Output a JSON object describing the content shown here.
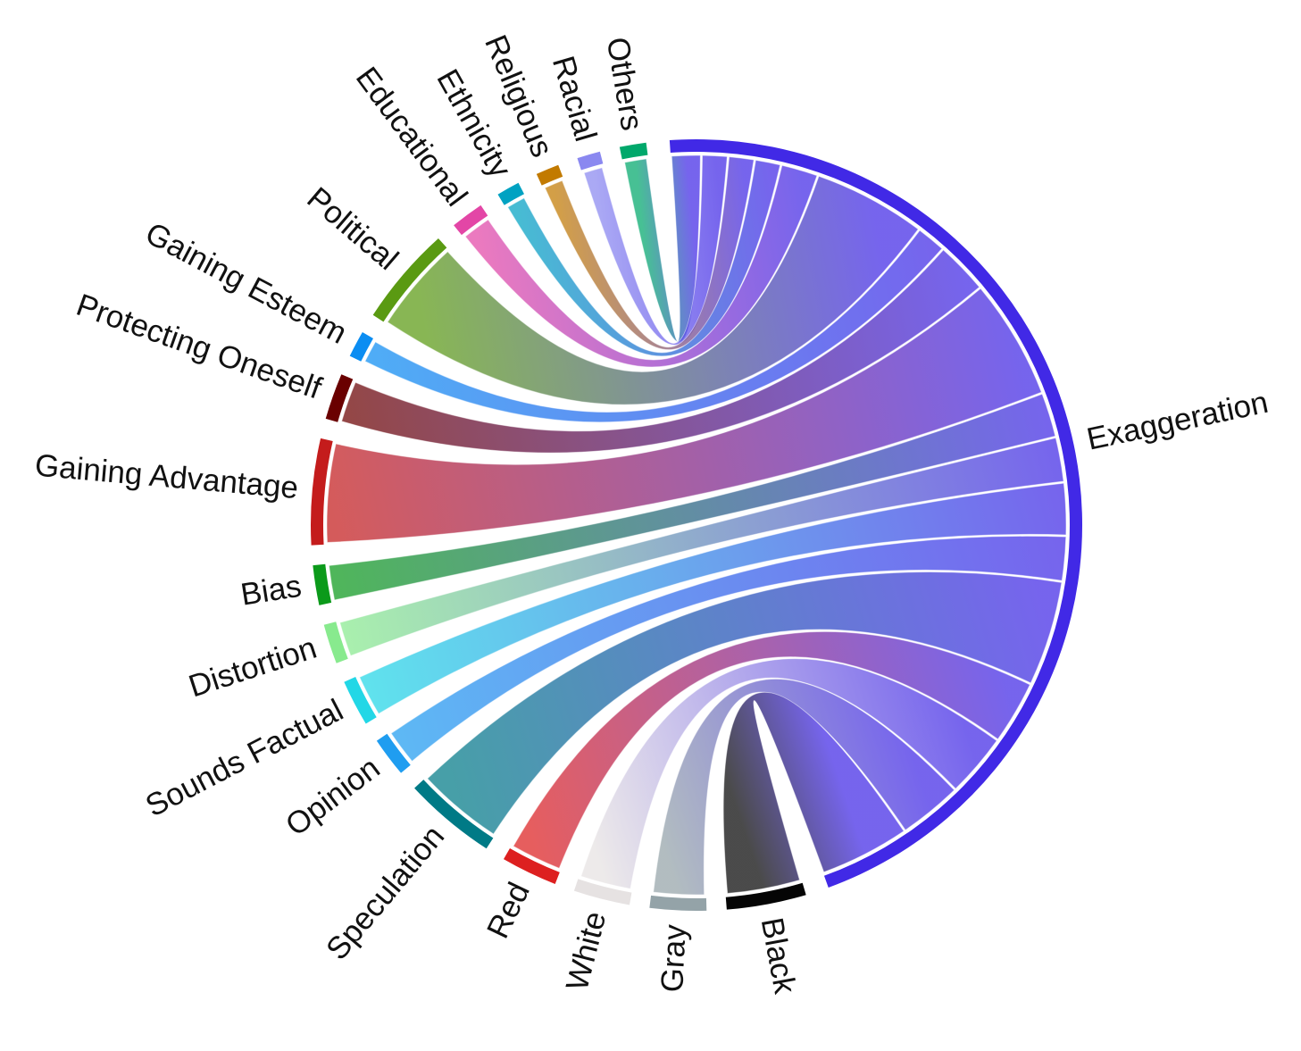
{
  "chart_data": {
    "type": "chord",
    "title": "",
    "hub": "Exaggeration",
    "groups": [
      {
        "name": "Exaggeration",
        "color": "#4129e6",
        "start": -4.0,
        "end": 160.0
      },
      {
        "name": "Black",
        "color": "#050505",
        "start": 163.5,
        "end": 175.5
      },
      {
        "name": "Gray",
        "color": "#94a3a8",
        "start": 178.5,
        "end": 187.0
      },
      {
        "name": "White",
        "color": "#e6e2e2",
        "start": 190.0,
        "end": 198.5
      },
      {
        "name": "Red",
        "color": "#dd2020",
        "start": 201.5,
        "end": 210.0
      },
      {
        "name": "Speculation",
        "color": "#007a86",
        "start": 213.0,
        "end": 227.0
      },
      {
        "name": "Opinion",
        "color": "#1f9df0",
        "start": 230.0,
        "end": 236.0
      },
      {
        "name": "Sounds Factual",
        "color": "#22d7e6",
        "start": 239.0,
        "end": 246.0
      },
      {
        "name": "Distortion",
        "color": "#88ea8e",
        "start": 249.0,
        "end": 255.0
      },
      {
        "name": "Bias",
        "color": "#0b9a1a",
        "start": 258.0,
        "end": 264.0
      },
      {
        "name": "Gaining Advantage",
        "color": "#c41c1c",
        "start": 267.0,
        "end": 283.0
      },
      {
        "name": "Protecting Oneself",
        "color": "#6a0000",
        "start": 286.0,
        "end": 293.0
      },
      {
        "name": "Gaining Esteem",
        "color": "#0b8df2",
        "start": 296.0,
        "end": 300.0
      },
      {
        "name": "Political",
        "color": "#5a9a12",
        "start": 303.0,
        "end": 318.0
      },
      {
        "name": "Educational",
        "color": "#e346a6",
        "start": 321.0,
        "end": 326.0
      },
      {
        "name": "Ethnicity",
        "color": "#00a2c2",
        "start": 329.0,
        "end": 332.5
      },
      {
        "name": "Religious",
        "color": "#c27a00",
        "start": 335.5,
        "end": 339.0
      },
      {
        "name": "Racial",
        "color": "#8a88f0",
        "start": 342.0,
        "end": 345.5
      },
      {
        "name": "Others",
        "color": "#00a86b",
        "start": 348.5,
        "end": 352.5
      }
    ],
    "links": [
      {
        "source": "Exaggeration",
        "target": "Black",
        "value": 12
      },
      {
        "source": "Exaggeration",
        "target": "Gray",
        "value": 8.5
      },
      {
        "source": "Exaggeration",
        "target": "White",
        "value": 8.5
      },
      {
        "source": "Exaggeration",
        "target": "Red",
        "value": 8.5
      },
      {
        "source": "Exaggeration",
        "target": "Speculation",
        "value": 14
      },
      {
        "source": "Exaggeration",
        "target": "Opinion",
        "value": 6
      },
      {
        "source": "Exaggeration",
        "target": "Sounds Factual",
        "value": 7
      },
      {
        "source": "Exaggeration",
        "target": "Distortion",
        "value": 6
      },
      {
        "source": "Exaggeration",
        "target": "Bias",
        "value": 6
      },
      {
        "source": "Exaggeration",
        "target": "Gaining Advantage",
        "value": 16
      },
      {
        "source": "Exaggeration",
        "target": "Protecting Oneself",
        "value": 7
      },
      {
        "source": "Exaggeration",
        "target": "Gaining Esteem",
        "value": 4
      },
      {
        "source": "Exaggeration",
        "target": "Political",
        "value": 15
      },
      {
        "source": "Exaggeration",
        "target": "Educational",
        "value": 5
      },
      {
        "source": "Exaggeration",
        "target": "Ethnicity",
        "value": 3.5
      },
      {
        "source": "Exaggeration",
        "target": "Religious",
        "value": 3.5
      },
      {
        "source": "Exaggeration",
        "target": "Racial",
        "value": 3.5
      },
      {
        "source": "Exaggeration",
        "target": "Others",
        "value": 4
      }
    ]
  }
}
